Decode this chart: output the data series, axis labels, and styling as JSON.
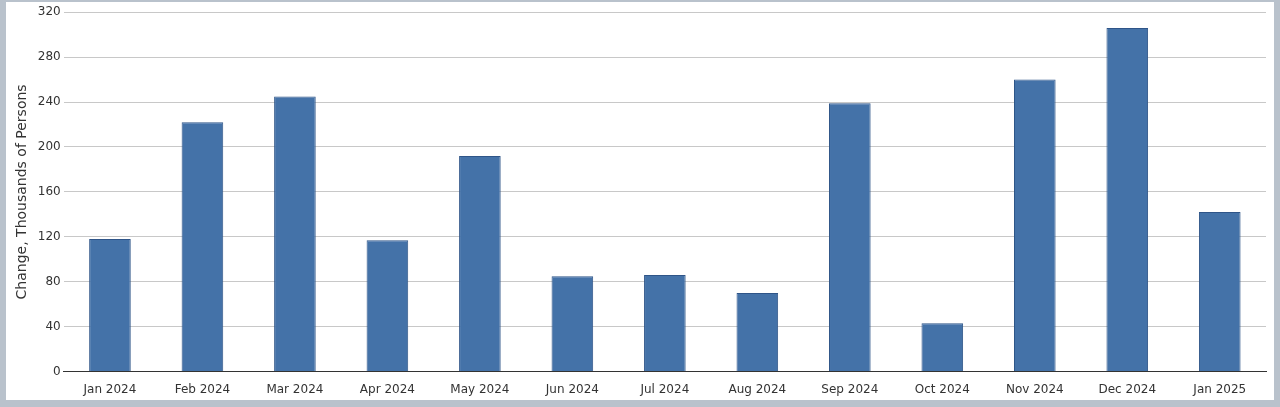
{
  "chart_data": {
    "type": "bar",
    "ylabel": "Change, Thousands of Persons",
    "categories": [
      "Jan 2024",
      "Feb 2024",
      "Mar 2024",
      "Apr 2024",
      "May 2024",
      "Jun 2024",
      "Jul 2024",
      "Aug 2024",
      "Sep 2024",
      "Oct 2024",
      "Nov 2024",
      "Dec 2024",
      "Jan 2025"
    ],
    "values": [
      118,
      222,
      245,
      117,
      192,
      85,
      86,
      70,
      239,
      43,
      260,
      306,
      142
    ],
    "color": "#4472a8",
    "ylim": [
      0,
      320
    ],
    "yticks": [
      0,
      40,
      80,
      120,
      160,
      200,
      240,
      280,
      320
    ],
    "grid": "y",
    "legend": false
  }
}
